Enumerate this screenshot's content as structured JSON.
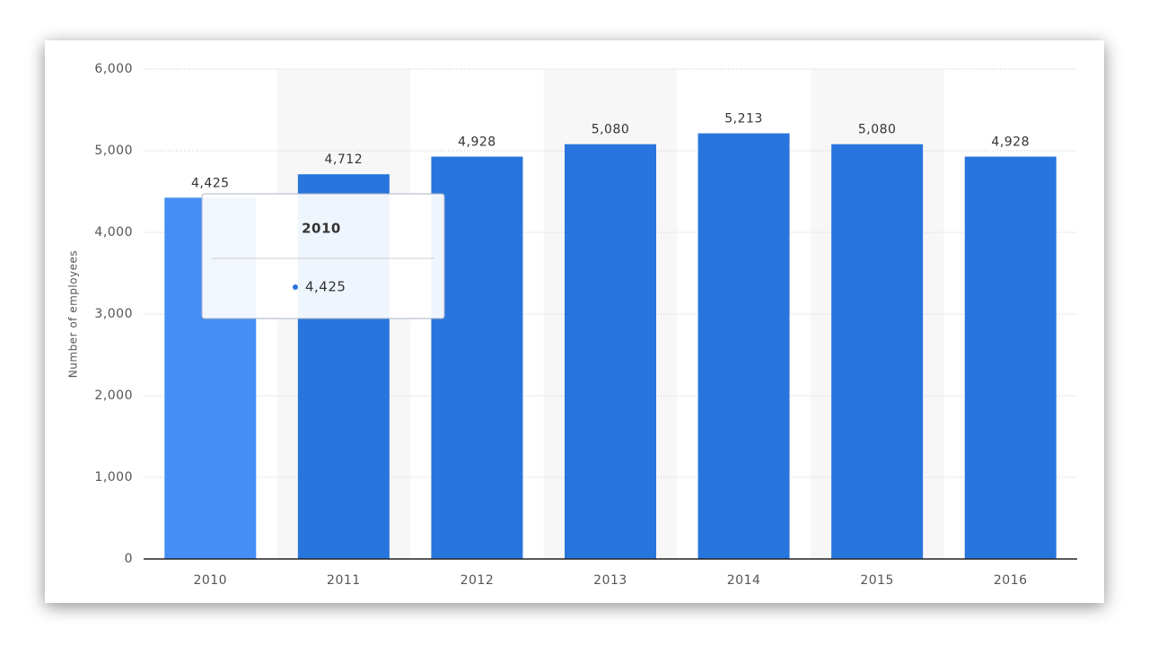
{
  "chart_data": {
    "type": "bar",
    "y_label": "Number of employees",
    "categories": [
      "2010",
      "2011",
      "2012",
      "2013",
      "2014",
      "2015",
      "2016"
    ],
    "values": [
      4425,
      4712,
      4928,
      5080,
      5213,
      5080,
      4928
    ],
    "value_labels": [
      "4,425",
      "4,712",
      "4,928",
      "5,080",
      "5,213",
      "5,080",
      "4,928"
    ],
    "colors": [
      "#448ef6",
      "#2875dd",
      "#2875dd",
      "#2875dd",
      "#2875dd",
      "#2875dd",
      "#2875dd"
    ],
    "ylim": [
      0,
      6000
    ],
    "yticks": [
      0,
      {
        "value": 1000,
        "label": "1,000"
      },
      {
        "value": 2000,
        "label": "2,000"
      },
      {
        "value": 3000,
        "label": "3,000"
      },
      {
        "value": 4000,
        "label": "4,000"
      },
      {
        "value": 5000,
        "label": "5,000"
      },
      {
        "value": 6000,
        "label": "6,000"
      }
    ],
    "grid": true,
    "tooltip": {
      "title": "2010",
      "value": "4,425"
    }
  }
}
